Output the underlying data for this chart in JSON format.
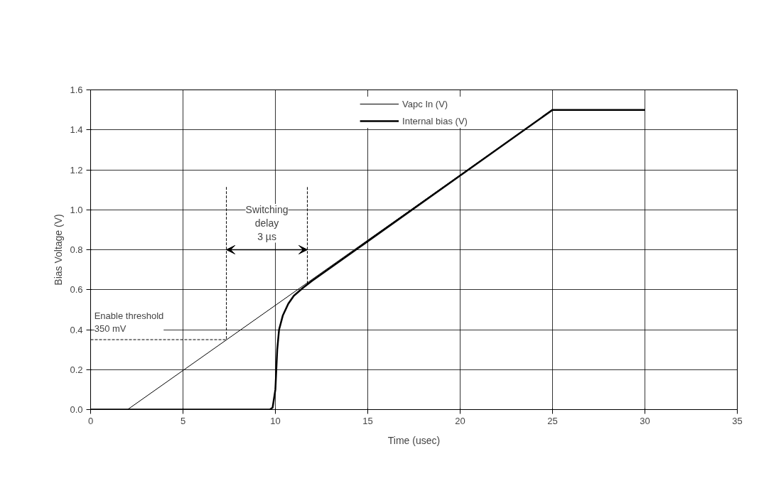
{
  "chart_data": {
    "type": "line",
    "xlabel": "Time (usec)",
    "ylabel": "Bias Voltage (V)",
    "xlim": [
      0,
      35
    ],
    "xticks": [
      0,
      5,
      10,
      15,
      20,
      25,
      30,
      35
    ],
    "ylim": [
      0,
      1.6
    ],
    "yticks": [
      {
        "value": 0,
        "label": "0.0"
      },
      {
        "value": 0.2,
        "label": "0.2"
      },
      {
        "value": 0.4,
        "label": "0.4"
      },
      {
        "value": 0.6,
        "label": "0.6"
      },
      {
        "value": 0.8,
        "label": "0.8"
      },
      {
        "value": 1.0,
        "label": "1.0"
      },
      {
        "value": 1.2,
        "label": "1.2"
      },
      {
        "value": 1.4,
        "label": "1.4"
      },
      {
        "value": 1.6,
        "label": "1.6"
      }
    ],
    "grid": true,
    "legend": "top",
    "marker": "none",
    "series": [
      {
        "name": "Vapc In (V)",
        "color": "#000000",
        "line_style": "solid",
        "x": [
          0,
          2,
          25,
          30
        ],
        "values": [
          0,
          0,
          1.5,
          1.5
        ]
      },
      {
        "name": "Internal bias (V)",
        "color": "#000000",
        "line_style": "solid",
        "x": [
          0,
          9.7,
          9.85,
          10.0,
          10.1,
          10.2,
          10.4,
          10.7,
          11.0,
          11.5,
          12,
          25,
          30
        ],
        "values": [
          0,
          0,
          0.01,
          0.1,
          0.3,
          0.4,
          0.47,
          0.53,
          0.57,
          0.61,
          0.645,
          1.5,
          1.5
        ]
      },
      {
        "color": "#000000",
        "line_style": "dashed",
        "x": [
          0,
          7.35,
          7.35
        ],
        "values": [
          0.35,
          0.35,
          1.12
        ]
      },
      {
        "color": "#000000",
        "line_style": "dashed",
        "x": [
          11.73,
          11.73
        ],
        "values": [
          0.63,
          1.12
        ]
      }
    ],
    "annotations": [
      {
        "text": "Enable threshold\n350 mV",
        "x": 0,
        "y": 0.35
      },
      "Switching\ndelay\n3 µs"
    ]
  }
}
